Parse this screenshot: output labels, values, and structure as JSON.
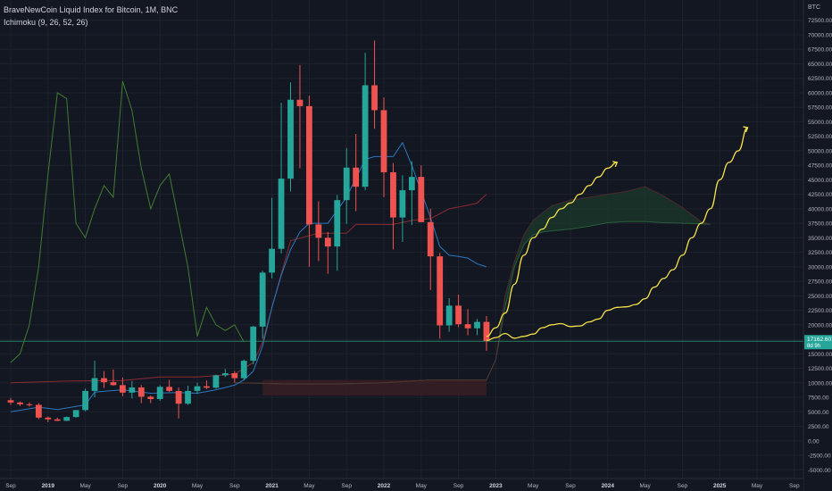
{
  "legend": {
    "title": "BraveNewCoin Liquid Index for Bitcoin, 1M, BNC",
    "indicator": "Ichimoku (9, 26, 52, 26)"
  },
  "chart_data": {
    "type": "candlestick",
    "currency_label": "BTC",
    "y_ticks": [
      72500,
      70000,
      67500,
      65000,
      62500,
      60000,
      57500,
      55000,
      52500,
      50000,
      47500,
      45000,
      42500,
      40000,
      37500,
      35000,
      32500,
      30000,
      27500,
      25000,
      22500,
      20000,
      17500,
      15000,
      12500,
      10000,
      7500,
      5000,
      2500,
      0,
      -2500,
      -5000
    ],
    "y_tick_labels": [
      "72500.00",
      "70000.00",
      "67500.00",
      "65000.00",
      "62500.00",
      "60000.00",
      "57500.00",
      "55000.00",
      "52500.00",
      "50000.00",
      "47500.00",
      "45000.00",
      "42500.00",
      "40000.00",
      "37500.00",
      "35000.00",
      "32500.00",
      "30000.00",
      "27500.00",
      "25000.00",
      "22500.00",
      "20000.00",
      "17500.00",
      "15000.00",
      "12500.00",
      "10000.00",
      "7500.00",
      "5000.00",
      "2500.00",
      "0.00",
      "-2500.00",
      "-5000.00"
    ],
    "ylim": [
      -6500,
      76000
    ],
    "x_labels": [
      {
        "label": "Sep",
        "month": 0
      },
      {
        "label": "2019",
        "month": 4
      },
      {
        "label": "May",
        "month": 8
      },
      {
        "label": "Sep",
        "month": 12
      },
      {
        "label": "2020",
        "month": 16
      },
      {
        "label": "May",
        "month": 20
      },
      {
        "label": "Sep",
        "month": 24
      },
      {
        "label": "2021",
        "month": 28
      },
      {
        "label": "May",
        "month": 32
      },
      {
        "label": "Sep",
        "month": 36
      },
      {
        "label": "2022",
        "month": 40
      },
      {
        "label": "May",
        "month": 44
      },
      {
        "label": "Sep",
        "month": 48
      },
      {
        "label": "2023",
        "month": 52
      },
      {
        "label": "May",
        "month": 56
      },
      {
        "label": "Sep",
        "month": 60
      },
      {
        "label": "2024",
        "month": 64
      },
      {
        "label": "May",
        "month": 68
      },
      {
        "label": "Sep",
        "month": 72
      },
      {
        "label": "2025",
        "month": 76
      },
      {
        "label": "May",
        "month": 80
      },
      {
        "label": "Sep",
        "month": 84
      }
    ],
    "candles": [
      {
        "o": 7000,
        "h": 7400,
        "l": 6200,
        "c": 6600
      },
      {
        "o": 6600,
        "h": 6800,
        "l": 6000,
        "c": 6300
      },
      {
        "o": 6300,
        "h": 6600,
        "l": 5900,
        "c": 6200
      },
      {
        "o": 6200,
        "h": 6500,
        "l": 3700,
        "c": 4000
      },
      {
        "o": 4000,
        "h": 4200,
        "l": 3200,
        "c": 3700
      },
      {
        "o": 3700,
        "h": 4000,
        "l": 3400,
        "c": 3450
      },
      {
        "o": 3450,
        "h": 4200,
        "l": 3400,
        "c": 4100
      },
      {
        "o": 4100,
        "h": 5300,
        "l": 4000,
        "c": 5300
      },
      {
        "o": 5300,
        "h": 9000,
        "l": 5100,
        "c": 8600
      },
      {
        "o": 8600,
        "h": 13800,
        "l": 7500,
        "c": 10800
      },
      {
        "o": 10800,
        "h": 12000,
        "l": 9100,
        "c": 10100
      },
      {
        "o": 10100,
        "h": 12300,
        "l": 9500,
        "c": 9600
      },
      {
        "o": 9600,
        "h": 10900,
        "l": 7700,
        "c": 8300
      },
      {
        "o": 8300,
        "h": 10300,
        "l": 7300,
        "c": 9200
      },
      {
        "o": 9200,
        "h": 9600,
        "l": 6500,
        "c": 7600
      },
      {
        "o": 7600,
        "h": 7800,
        "l": 6500,
        "c": 7200
      },
      {
        "o": 7200,
        "h": 9600,
        "l": 6900,
        "c": 9300
      },
      {
        "o": 9300,
        "h": 10500,
        "l": 8400,
        "c": 8600
      },
      {
        "o": 8600,
        "h": 9200,
        "l": 3850,
        "c": 6400
      },
      {
        "o": 6400,
        "h": 9500,
        "l": 6200,
        "c": 8600
      },
      {
        "o": 8600,
        "h": 10000,
        "l": 8100,
        "c": 9400
      },
      {
        "o": 9400,
        "h": 10400,
        "l": 8900,
        "c": 9150
      },
      {
        "o": 9150,
        "h": 11400,
        "l": 9000,
        "c": 11300
      },
      {
        "o": 11300,
        "h": 12400,
        "l": 11000,
        "c": 11650
      },
      {
        "o": 11650,
        "h": 12000,
        "l": 10000,
        "c": 10800
      },
      {
        "o": 10800,
        "h": 14000,
        "l": 10500,
        "c": 13800
      },
      {
        "o": 13800,
        "h": 19800,
        "l": 13200,
        "c": 19700
      },
      {
        "o": 19700,
        "h": 29300,
        "l": 17600,
        "c": 29000
      },
      {
        "o": 29000,
        "h": 41900,
        "l": 28000,
        "c": 33100
      },
      {
        "o": 33100,
        "h": 58300,
        "l": 32300,
        "c": 45200
      },
      {
        "o": 45200,
        "h": 61800,
        "l": 43000,
        "c": 58800
      },
      {
        "o": 58800,
        "h": 64800,
        "l": 47000,
        "c": 57700
      },
      {
        "o": 57700,
        "h": 59500,
        "l": 30000,
        "c": 37300
      },
      {
        "o": 37300,
        "h": 41300,
        "l": 31000,
        "c": 35000
      },
      {
        "o": 35000,
        "h": 36000,
        "l": 28800,
        "c": 33500
      },
      {
        "o": 33500,
        "h": 42400,
        "l": 29300,
        "c": 41500
      },
      {
        "o": 41500,
        "h": 50500,
        "l": 37400,
        "c": 47100
      },
      {
        "o": 47100,
        "h": 52900,
        "l": 39600,
        "c": 43800
      },
      {
        "o": 43800,
        "h": 66900,
        "l": 43200,
        "c": 61300
      },
      {
        "o": 61300,
        "h": 69000,
        "l": 53800,
        "c": 57000
      },
      {
        "o": 57000,
        "h": 59200,
        "l": 42000,
        "c": 46300
      },
      {
        "o": 46300,
        "h": 47900,
        "l": 33000,
        "c": 38500
      },
      {
        "o": 38500,
        "h": 45800,
        "l": 34300,
        "c": 43200
      },
      {
        "o": 43200,
        "h": 48200,
        "l": 37200,
        "c": 45500
      },
      {
        "o": 45500,
        "h": 47500,
        "l": 37700,
        "c": 37700
      },
      {
        "o": 37700,
        "h": 40000,
        "l": 26000,
        "c": 31800
      },
      {
        "o": 31800,
        "h": 32400,
        "l": 17600,
        "c": 19900
      },
      {
        "o": 19900,
        "h": 24600,
        "l": 18800,
        "c": 23300
      },
      {
        "o": 23300,
        "h": 25200,
        "l": 19600,
        "c": 20100
      },
      {
        "o": 20100,
        "h": 22700,
        "l": 18200,
        "c": 19400
      },
      {
        "o": 19400,
        "h": 21000,
        "l": 18200,
        "c": 20500
      },
      {
        "o": 20500,
        "h": 21500,
        "l": 15500,
        "c": 17200
      }
    ],
    "current_price_label": "17162.60",
    "current_price_sublabel": "8d 9h",
    "current_price": 17162.6,
    "conversion_line": [
      [
        0,
        5000
      ],
      [
        3,
        5800
      ],
      [
        5,
        5400
      ],
      [
        8,
        6200
      ],
      [
        9,
        8400
      ],
      [
        12,
        8800
      ],
      [
        15,
        8200
      ],
      [
        18,
        8300
      ],
      [
        20,
        8200
      ],
      [
        22,
        8800
      ],
      [
        24,
        9600
      ],
      [
        25,
        10500
      ],
      [
        26,
        12000
      ],
      [
        27,
        16300
      ],
      [
        28,
        23000
      ],
      [
        29,
        28500
      ],
      [
        30,
        33000
      ],
      [
        31,
        36000
      ],
      [
        32,
        37500
      ],
      [
        33,
        37500
      ],
      [
        34,
        37500
      ],
      [
        36,
        42000
      ],
      [
        38,
        48500
      ],
      [
        39,
        49000
      ],
      [
        40,
        49000
      ],
      [
        41,
        49000
      ],
      [
        42,
        51400
      ],
      [
        43,
        47500
      ],
      [
        44,
        43000
      ],
      [
        45,
        38500
      ],
      [
        46,
        33500
      ],
      [
        47,
        32000
      ],
      [
        48,
        31800
      ],
      [
        49,
        31500
      ],
      [
        50,
        30500
      ],
      [
        51,
        30000
      ]
    ],
    "base_line": [
      [
        0,
        10000
      ],
      [
        6,
        10300
      ],
      [
        12,
        10400
      ],
      [
        16,
        11000
      ],
      [
        20,
        11000
      ],
      [
        24,
        11500
      ],
      [
        25,
        12500
      ],
      [
        26,
        13500
      ],
      [
        27,
        17000
      ],
      [
        28,
        23000
      ],
      [
        30,
        34500
      ],
      [
        33,
        35800
      ],
      [
        36,
        35800
      ],
      [
        37,
        37300
      ],
      [
        39,
        37300
      ],
      [
        41,
        37300
      ],
      [
        43,
        38000
      ],
      [
        45,
        38300
      ],
      [
        47,
        40000
      ],
      [
        48,
        40300
      ],
      [
        49,
        40600
      ],
      [
        50,
        41000
      ],
      [
        51,
        42500
      ]
    ],
    "lagging_span": [
      [
        0,
        13500
      ],
      [
        1,
        15000
      ],
      [
        2,
        20000
      ],
      [
        3,
        30000
      ],
      [
        4,
        46000
      ],
      [
        5,
        60000
      ],
      [
        6,
        59000
      ],
      [
        7,
        37500
      ],
      [
        8,
        35000
      ],
      [
        9,
        40000
      ],
      [
        10,
        44000
      ],
      [
        11,
        42000
      ],
      [
        12,
        62000
      ],
      [
        13,
        57000
      ],
      [
        14,
        47000
      ],
      [
        15,
        40000
      ],
      [
        16,
        44000
      ],
      [
        17,
        46000
      ],
      [
        18,
        38000
      ],
      [
        19,
        30000
      ],
      [
        20,
        18000
      ],
      [
        21,
        23000
      ],
      [
        22,
        20000
      ],
      [
        23,
        19000
      ],
      [
        24,
        20000
      ],
      [
        25,
        17000
      ]
    ],
    "leading_span_a": [
      [
        24,
        10000
      ],
      [
        30,
        9800
      ],
      [
        35,
        9800
      ],
      [
        40,
        10000
      ],
      [
        45,
        10500
      ],
      [
        48,
        10500
      ],
      [
        51,
        10500
      ],
      [
        52,
        14000
      ],
      [
        53,
        23000
      ],
      [
        54,
        30000
      ],
      [
        55,
        33800
      ],
      [
        56,
        35500
      ],
      [
        57,
        36000
      ],
      [
        58,
        36200
      ],
      [
        60,
        36500
      ],
      [
        62,
        37000
      ],
      [
        64,
        37600
      ],
      [
        66,
        37800
      ],
      [
        68,
        37800
      ],
      [
        70,
        37600
      ],
      [
        72,
        37500
      ],
      [
        74,
        37400
      ],
      [
        75,
        37300
      ]
    ],
    "leading_span_b": [
      [
        24,
        10000
      ],
      [
        30,
        9800
      ],
      [
        35,
        9800
      ],
      [
        40,
        10000
      ],
      [
        45,
        10500
      ],
      [
        48,
        10500
      ],
      [
        51,
        10500
      ],
      [
        52,
        14000
      ],
      [
        53,
        25000
      ],
      [
        54,
        31000
      ],
      [
        55,
        35500
      ],
      [
        56,
        38000
      ],
      [
        57,
        39300
      ],
      [
        58,
        40500
      ],
      [
        60,
        41500
      ],
      [
        62,
        42000
      ],
      [
        64,
        42500
      ],
      [
        66,
        43000
      ],
      [
        68,
        43800
      ],
      [
        70,
        42200
      ],
      [
        72,
        40200
      ],
      [
        74,
        37800
      ],
      [
        75,
        37300
      ]
    ],
    "projection_upper": [
      [
        51,
        18000
      ],
      [
        52,
        19500
      ],
      [
        53,
        22000
      ],
      [
        54,
        27000
      ],
      [
        55,
        32000
      ],
      [
        56,
        35000
      ],
      [
        57,
        36500
      ],
      [
        58,
        38500
      ],
      [
        59,
        40000
      ],
      [
        60,
        41000
      ],
      [
        61,
        42500
      ],
      [
        62,
        44000
      ],
      [
        63,
        45500
      ],
      [
        64,
        47000
      ],
      [
        65,
        48000
      ]
    ],
    "projection_lower": [
      [
        51,
        17300
      ],
      [
        52,
        17800
      ],
      [
        53,
        18500
      ],
      [
        54,
        17700
      ],
      [
        55,
        18000
      ],
      [
        56,
        18400
      ],
      [
        57,
        19500
      ],
      [
        58,
        20000
      ],
      [
        59,
        20200
      ],
      [
        60,
        19700
      ],
      [
        61,
        19800
      ],
      [
        62,
        20500
      ],
      [
        63,
        21000
      ],
      [
        64,
        22500
      ],
      [
        65,
        23000
      ],
      [
        66,
        23100
      ],
      [
        67,
        23500
      ],
      [
        68,
        24500
      ],
      [
        69,
        26500
      ],
      [
        70,
        28000
      ],
      [
        71,
        29500
      ],
      [
        72,
        32000
      ],
      [
        73,
        35000
      ],
      [
        74,
        37500
      ],
      [
        75,
        40000
      ],
      [
        76,
        45000
      ],
      [
        77,
        48000
      ],
      [
        78,
        50000
      ],
      [
        79,
        54000
      ]
    ]
  }
}
